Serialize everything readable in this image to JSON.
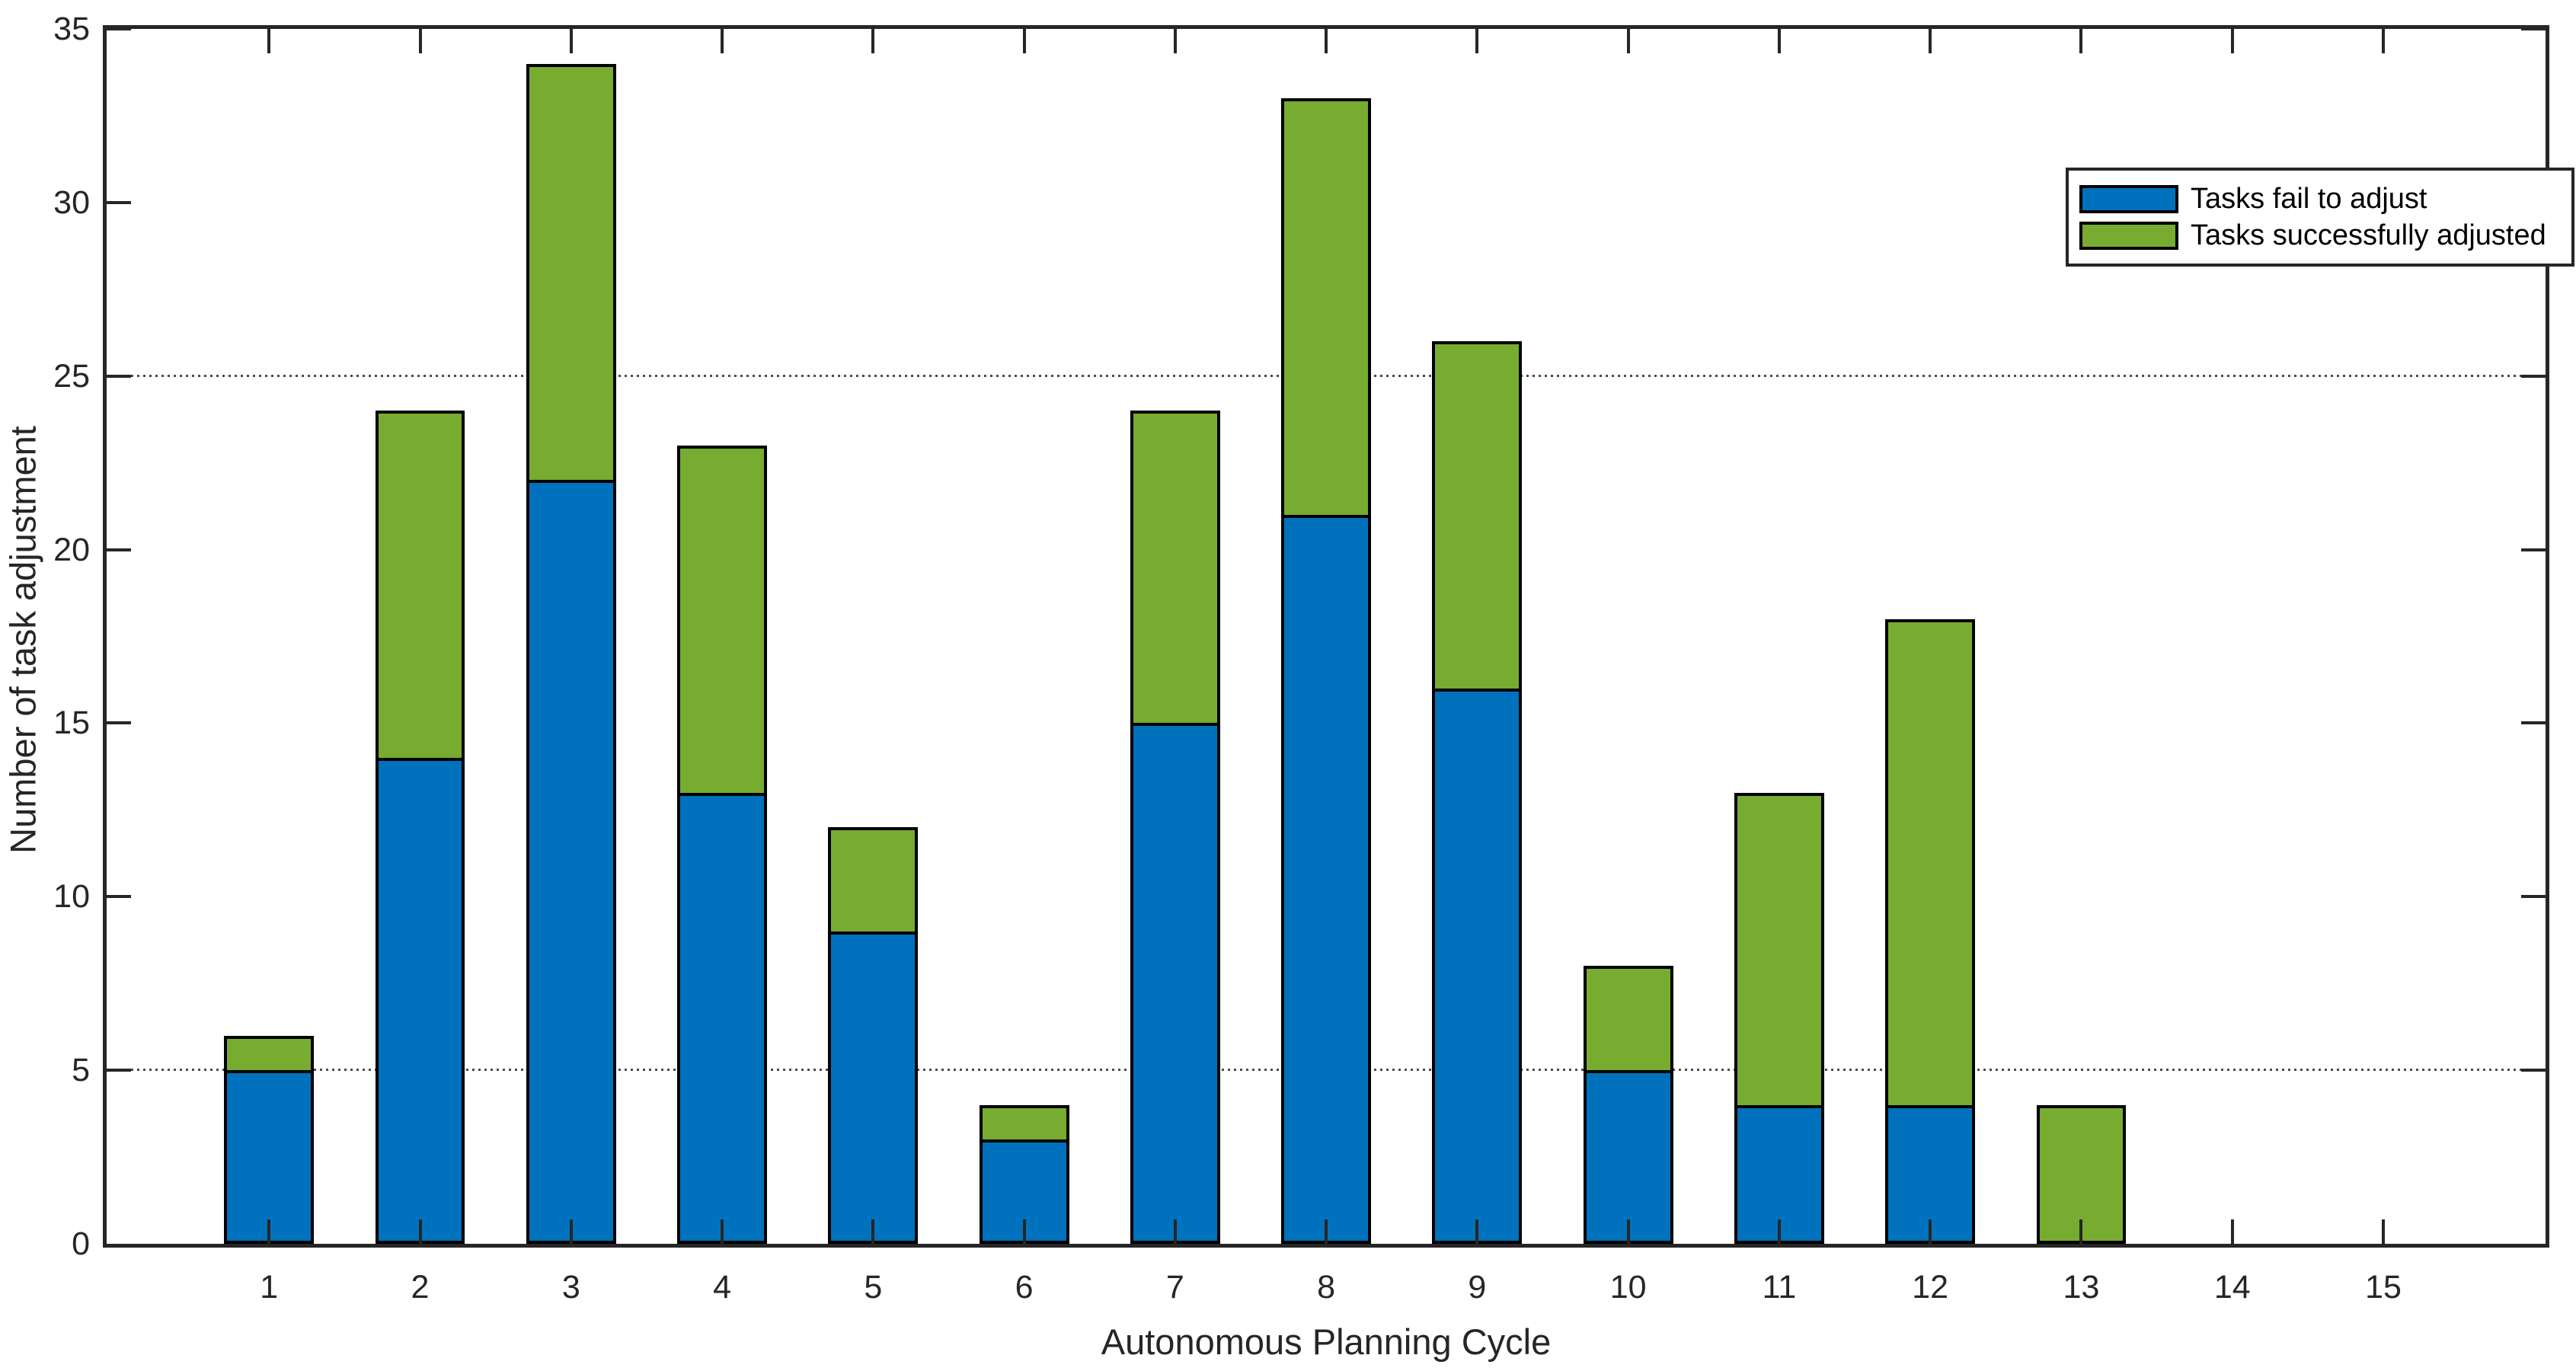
{
  "figure": {
    "background": "#ffffff",
    "axis_color": "#262626"
  },
  "chart_data": {
    "type": "bar",
    "stacked": true,
    "title": "",
    "xlabel": "Autonomous Planning Cycle",
    "ylabel": "Number of task adjustment",
    "categories": [
      1,
      2,
      3,
      4,
      5,
      6,
      7,
      8,
      9,
      10,
      11,
      12,
      13,
      14,
      15
    ],
    "xtick_labels": [
      "1",
      "2",
      "3",
      "4",
      "5",
      "6",
      "7",
      "8",
      "9",
      "10",
      "11",
      "12",
      "13",
      "14",
      "15"
    ],
    "series": [
      {
        "name": "Tasks fail to adjust",
        "color": "#0072BD",
        "values": [
          5,
          14,
          22,
          13,
          9,
          3,
          15,
          21,
          16,
          5,
          4,
          4,
          0,
          0,
          0
        ]
      },
      {
        "name": "Tasks successfully adjusted",
        "color": "#77AC30",
        "values": [
          1,
          10,
          12,
          10,
          3,
          1,
          9,
          12,
          10,
          3,
          9,
          14,
          4,
          0,
          0
        ]
      }
    ],
    "totals": [
      6,
      24,
      34,
      23,
      12,
      4,
      24,
      33,
      26,
      8,
      13,
      18,
      4,
      0,
      0
    ],
    "ylim": [
      0,
      35
    ],
    "yticks": [
      0,
      5,
      10,
      15,
      20,
      25,
      30,
      35
    ],
    "ytick_labels": [
      "0",
      "5",
      "10",
      "15",
      "20",
      "25",
      "30",
      "35"
    ],
    "grid_y": [
      5,
      25
    ],
    "grid_style": "dotted",
    "legend_position": "top-right-inside",
    "bar_edge_color": "#000000",
    "tick_direction": "in"
  },
  "legend": {
    "entries": [
      {
        "label": "Tasks fail to adjust",
        "color": "#0072BD"
      },
      {
        "label": "Tasks successfully adjusted",
        "color": "#77AC30"
      }
    ]
  }
}
